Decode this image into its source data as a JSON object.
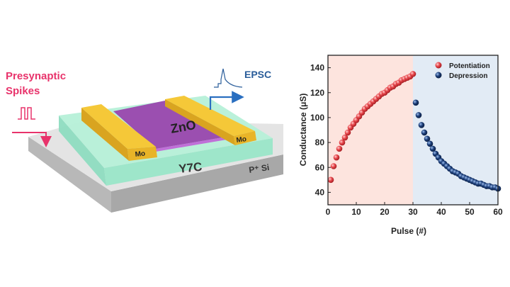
{
  "diagram": {
    "input_label_line1": "Presynaptic",
    "input_label_line2": "Spikes",
    "output_label": "EPSC",
    "channel_label": "ZnO",
    "electrode_left_label": "Mo",
    "electrode_right_label": "Mo",
    "dielectric_label": "Y7C",
    "substrate_label": "P⁺ Si",
    "colors": {
      "input": "#e8336b",
      "output": "#2a5d9a",
      "channel": "#9b4fb0",
      "electrode": "#f0c030",
      "dielectric": "#a8ecd0",
      "substrate": "#c8c8c8"
    }
  },
  "chart_data": {
    "type": "scatter",
    "title": "",
    "xlabel": "Pulse (#)",
    "ylabel": "Conductance (μS)",
    "xlim": [
      0,
      60
    ],
    "ylim": [
      30,
      150
    ],
    "xticks": [
      0,
      10,
      20,
      30,
      40,
      50,
      60
    ],
    "yticks": [
      40,
      60,
      80,
      100,
      120,
      140
    ],
    "grid": false,
    "legend_position": "top-right",
    "shaded_regions": [
      {
        "from": 0,
        "to": 30,
        "color": "#fde4de"
      },
      {
        "from": 30,
        "to": 60,
        "color": "#e2ebf5"
      }
    ],
    "series": [
      {
        "name": "Potentiation",
        "color": "#e8474c",
        "x": [
          1,
          2,
          3,
          4,
          5,
          6,
          7,
          8,
          9,
          10,
          11,
          12,
          13,
          14,
          15,
          16,
          17,
          18,
          19,
          20,
          21,
          22,
          23,
          24,
          25,
          26,
          27,
          28,
          29,
          30
        ],
        "y": [
          50,
          61,
          68,
          75,
          80,
          84,
          88,
          92,
          95,
          98,
          101,
          104,
          107,
          109,
          111,
          113,
          115,
          117,
          119,
          120,
          122,
          124,
          125,
          127,
          128,
          130,
          131,
          132,
          133,
          135
        ]
      },
      {
        "name": "Depression",
        "color": "#1d3f7a",
        "x": [
          31,
          32,
          33,
          34,
          35,
          36,
          37,
          38,
          39,
          40,
          41,
          42,
          43,
          44,
          45,
          46,
          47,
          48,
          49,
          50,
          51,
          52,
          53,
          54,
          55,
          56,
          57,
          58,
          59,
          60
        ],
        "y": [
          112,
          102,
          94,
          88,
          83,
          79,
          75,
          71,
          68,
          65,
          63,
          61,
          59,
          57,
          56,
          55,
          53,
          52,
          51,
          50,
          49,
          48,
          47,
          47,
          46,
          45,
          45,
          44,
          44,
          43
        ]
      }
    ]
  }
}
